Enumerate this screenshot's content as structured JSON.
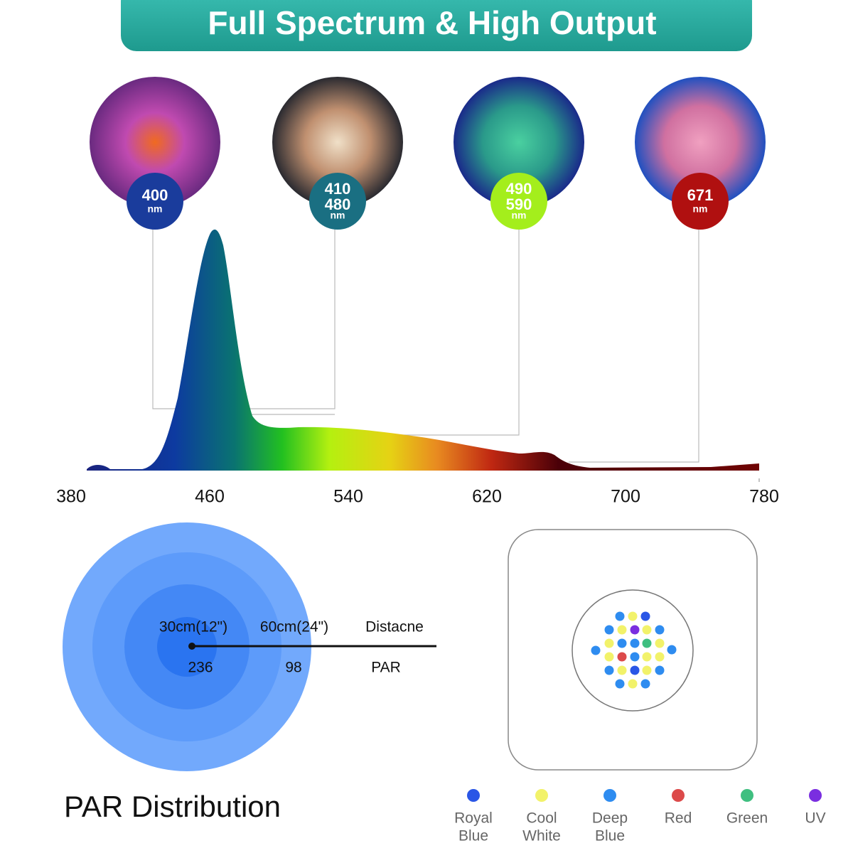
{
  "header": {
    "title": "Full Spectrum & High Output"
  },
  "badges": [
    {
      "lines": [
        "400",
        "nm"
      ],
      "color": "#1a3c9c"
    },
    {
      "lines": [
        "410",
        "480",
        "nm"
      ],
      "color": "#1a6f82"
    },
    {
      "lines": [
        "490",
        "590",
        "nm"
      ],
      "color": "#a4ee1c"
    },
    {
      "lines": [
        "671",
        "nm"
      ],
      "color": "#b01010"
    }
  ],
  "spectrum": {
    "xticks": [
      380,
      460,
      540,
      620,
      700,
      780
    ],
    "xlim": [
      380,
      780
    ]
  },
  "par": {
    "distances": [
      "30cm(12\")",
      "60cm(24\")"
    ],
    "distance_label": "Distacne",
    "values": [
      "236",
      "98"
    ],
    "value_label": "PAR",
    "title": "PAR Distribution"
  },
  "legend": [
    {
      "label": [
        "Royal",
        "Blue"
      ],
      "color": "#2a56e6"
    },
    {
      "label": [
        "Cool",
        "White"
      ],
      "color": "#f2f26a"
    },
    {
      "label": [
        "Deep",
        "Blue"
      ],
      "color": "#2e8cf0"
    },
    {
      "label": [
        "Red"
      ],
      "color": "#dc4a4a"
    },
    {
      "label": [
        "Green"
      ],
      "color": "#3fbf80"
    },
    {
      "label": [
        "UV"
      ],
      "color": "#7a2ee0"
    }
  ]
}
